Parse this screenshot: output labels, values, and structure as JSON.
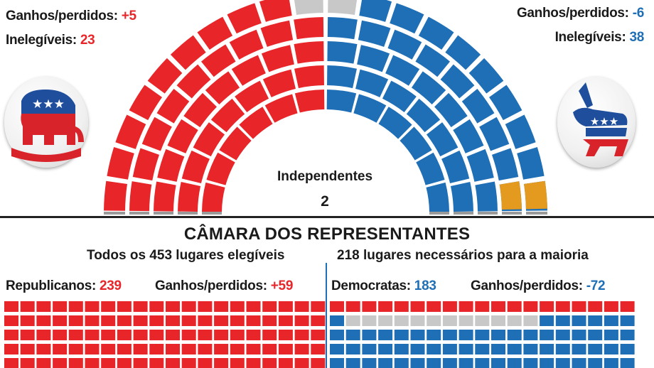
{
  "senate": {
    "rep": {
      "gains_label": "Ganhos/perdidos:",
      "gains_value": "+5",
      "inelig_label": "Inelegíveis:",
      "inelig_value": "23"
    },
    "dem": {
      "gains_label": "Ganhos/perdidos:",
      "gains_value": "-6",
      "inelig_label": "Inelegíveis:",
      "inelig_value": "38"
    },
    "independents_label": "Independentes",
    "independents_value": "2"
  },
  "house": {
    "title": "CÂMARA DOS REPRESENTANTES",
    "subtitle_left": "Todos os 453 lugares elegíveis",
    "subtitle_right": "218 lugares necessários para a maioria",
    "rep_label": "Republicanos:",
    "rep_value": "239",
    "rep_gain_label": "Ganhos/perdidos:",
    "rep_gain_value": "+59",
    "dem_label": "Democratas:",
    "dem_value": "183",
    "dem_gain_label": "Ganhos/perdidos:",
    "dem_gain_value": "-72"
  },
  "chart_data": [
    {
      "type": "parliament-arc",
      "series": [
        {
          "name": "Republicanos",
          "color": "#e8262a"
        },
        {
          "name": "Democratas",
          "color": "#1f6fb7"
        },
        {
          "name": "Independentes",
          "color": "#e39a1e",
          "value": 2
        },
        {
          "name": "",
          "color": "#c8c8c8"
        }
      ]
    },
    {
      "type": "waffle",
      "series": [
        {
          "name": "Republicanos",
          "value": 239,
          "color": "#e8262a"
        },
        {
          "name": "Democratas",
          "value": 183,
          "color": "#1f6fb7"
        },
        {
          "name": "",
          "color": "#c8c8c8"
        }
      ]
    }
  ],
  "colors": {
    "red": "#e8262a",
    "blue": "#1f6fb7",
    "orange": "#e39a1e",
    "gray": "#c8c8c8",
    "dark": "#222222"
  },
  "icons": {
    "rep_logo": "elephant-icon",
    "dem_logo": "donkey-icon"
  }
}
